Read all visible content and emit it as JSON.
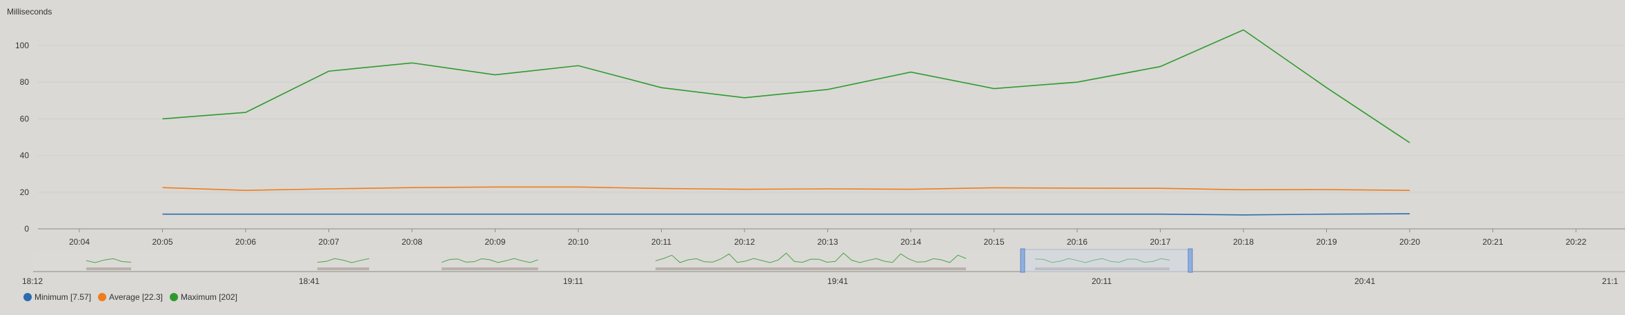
{
  "chart_data": {
    "type": "line",
    "ylabel": "Milliseconds",
    "ylim": [
      0,
      120
    ],
    "yticks": [
      "0",
      "20",
      "40",
      "60",
      "80",
      "100"
    ],
    "x_ticks": [
      "20:04",
      "20:05",
      "20:06",
      "20:07",
      "20:08",
      "20:09",
      "20:10",
      "20:11",
      "20:12",
      "20:13",
      "20:14",
      "20:15",
      "20:16",
      "20:17",
      "20:18",
      "20:19",
      "20:20",
      "20:21",
      "20:22"
    ],
    "x": [
      "20:05",
      "20:06",
      "20:07",
      "20:08",
      "20:09",
      "20:10",
      "20:11",
      "20:12",
      "20:13",
      "20:14",
      "20:15",
      "20:16",
      "20:17",
      "20:18",
      "20:19",
      "20:20"
    ],
    "series": [
      {
        "name": "Minimum [7.57]",
        "color": "#2b6bb0",
        "values": [
          8,
          8,
          8,
          8,
          8,
          8,
          8,
          8,
          8,
          8,
          8,
          8,
          8,
          7.6,
          8,
          8.2
        ]
      },
      {
        "name": "Average [22.3]",
        "color": "#f07c1b",
        "values": [
          22.5,
          21,
          21.8,
          22.5,
          22.8,
          22.8,
          22,
          21.6,
          21.8,
          21.6,
          22.4,
          22.2,
          22.1,
          21.3,
          21.4,
          21
        ]
      },
      {
        "name": "Maximum [202]",
        "color": "#2e9a2e",
        "values": [
          60,
          63.5,
          86,
          90.5,
          84,
          89,
          77,
          71.5,
          76,
          85.5,
          76.5,
          80,
          88.5,
          108.5,
          77,
          47
        ]
      }
    ],
    "grid": true,
    "legend_position": "bottom-left",
    "navigator": {
      "ticks": [
        "18:12",
        "18:41",
        "19:11",
        "19:41",
        "20:11",
        "20:41",
        "21:1"
      ]
    }
  }
}
